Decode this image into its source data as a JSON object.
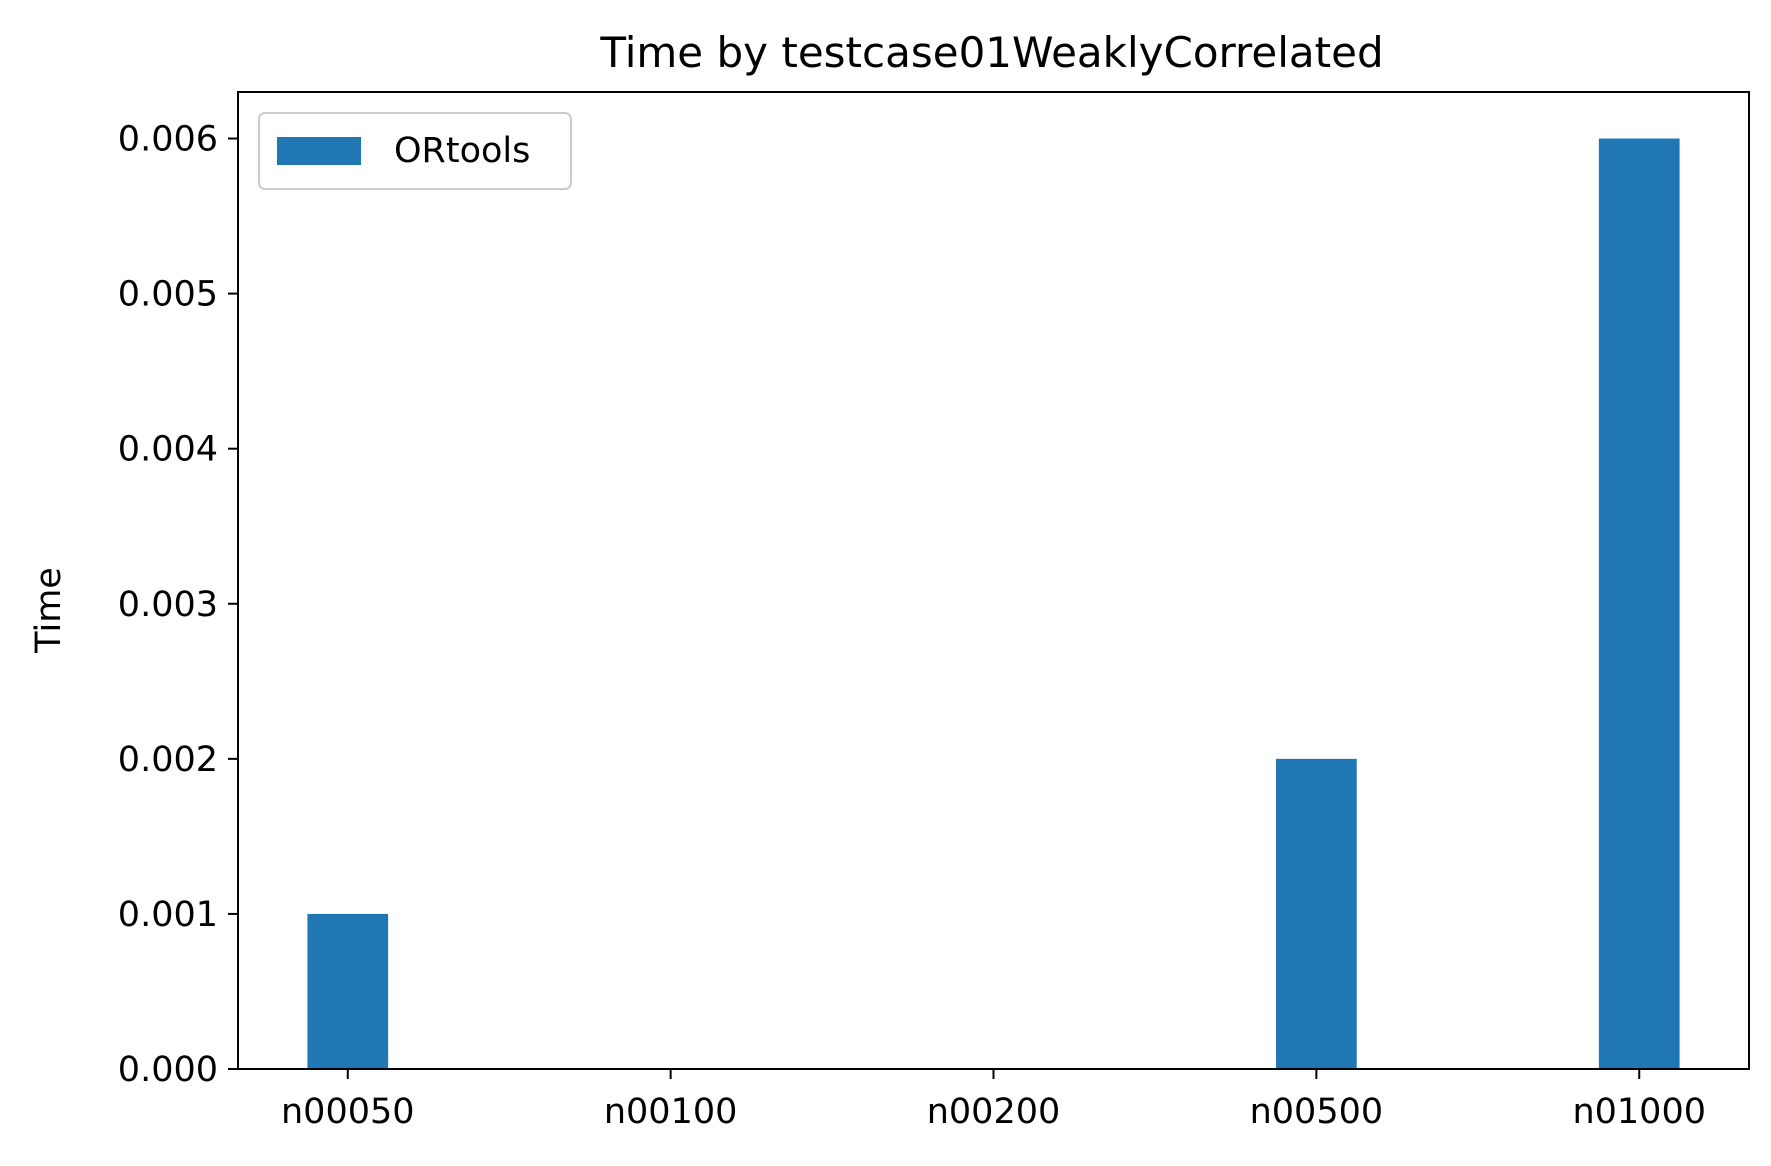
{
  "chart_data": {
    "type": "bar",
    "title": "Time by testcase01WeaklyCorrelated",
    "xlabel": "",
    "ylabel": "Time",
    "categories": [
      "n00050",
      "n00100",
      "n00200",
      "n00500",
      "n01000"
    ],
    "series": [
      {
        "name": "ORtools",
        "values": [
          0.001,
          0.0,
          0.0,
          0.002,
          0.006
        ],
        "color": "#1f77b4"
      }
    ],
    "ylim": [
      0,
      0.0063
    ],
    "yticks": [
      0.0,
      0.001,
      0.002,
      0.003,
      0.004,
      0.005,
      0.006
    ],
    "ytick_labels": [
      "0.000",
      "0.001",
      "0.002",
      "0.003",
      "0.004",
      "0.005",
      "0.006"
    ],
    "grid": false,
    "legend": {
      "placement": "top-left",
      "entries": [
        "ORtools"
      ]
    }
  }
}
